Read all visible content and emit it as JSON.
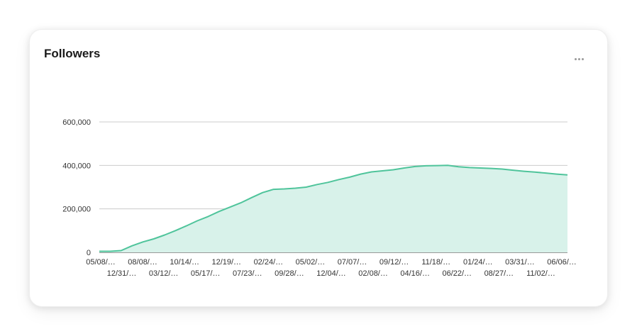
{
  "card": {
    "title": "Followers",
    "more_icon": "more-horizontal-icon"
  },
  "chart_data": {
    "type": "area",
    "title": "Followers",
    "xlabel": "",
    "ylabel": "",
    "ylim": [
      0,
      600000
    ],
    "grid": true,
    "legend": "none",
    "colors": {
      "line": "#4fc49b",
      "fill": "#d8f2ea",
      "grid": "#cccccc"
    },
    "y_ticks": [
      0,
      200000,
      400000,
      600000
    ],
    "y_tick_labels": [
      "0",
      "200,000",
      "400,000",
      "600,000"
    ],
    "x_tick_labels": [
      "05/08/…",
      "12/31/…",
      "08/08/…",
      "03/12/…",
      "10/14/…",
      "05/17/…",
      "12/19/…",
      "07/23/…",
      "02/24/…",
      "09/28/…",
      "05/02/…",
      "12/04/…",
      "07/07/…",
      "02/08/…",
      "09/12/…",
      "04/16/…",
      "11/18/…",
      "06/22/…",
      "01/24/…",
      "08/27/…",
      "03/31/…",
      "11/02/…",
      "06/06/…"
    ],
    "series": [
      {
        "values": [
          5000,
          5000,
          8000,
          30000,
          48000,
          62000,
          80000,
          100000,
          122000,
          145000,
          165000,
          188000,
          208000,
          228000,
          252000,
          275000,
          290000,
          292000,
          295000,
          300000,
          312000,
          322000,
          335000,
          346000,
          360000,
          370000,
          375000,
          380000,
          388000,
          395000,
          398000,
          399000,
          400000,
          394000,
          390000,
          388000,
          386000,
          383000,
          378000,
          373000,
          369000,
          365000,
          360000,
          356000
        ]
      }
    ]
  }
}
